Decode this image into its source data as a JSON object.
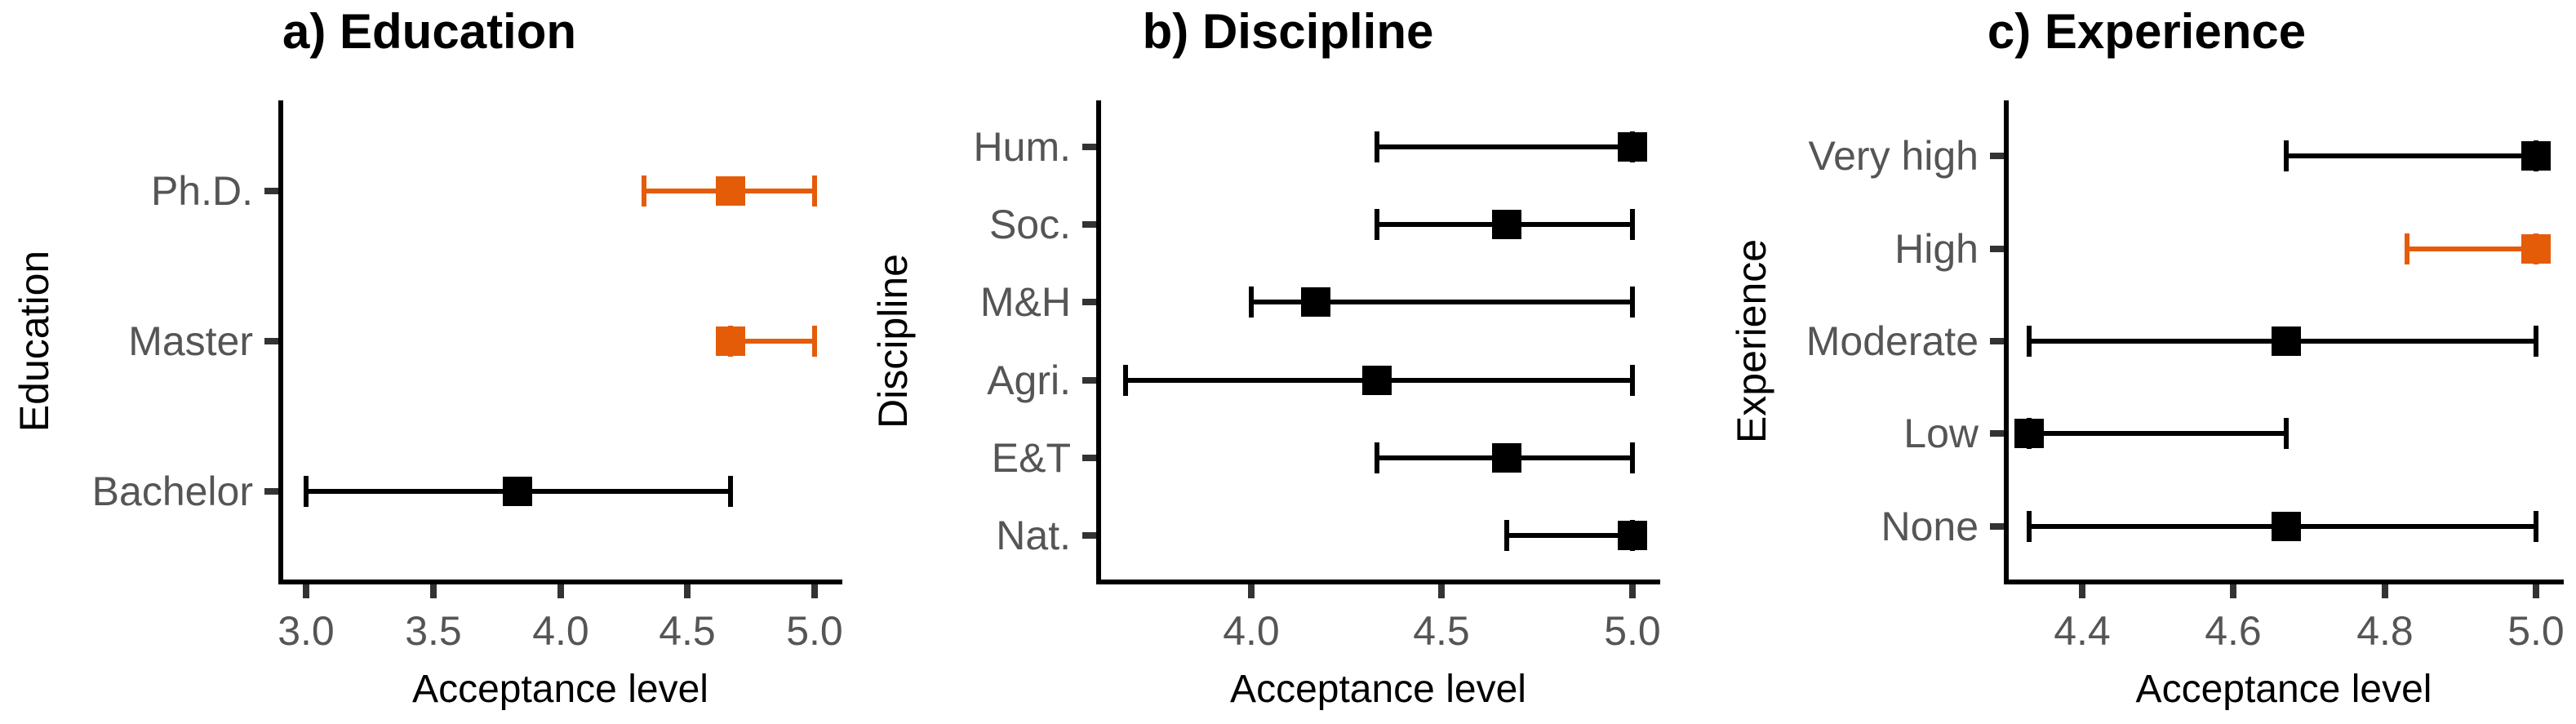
{
  "figure": {
    "kind": "three-panel dot-whisker plot of mean acceptance level with confidence intervals",
    "background": "#FFFFFF"
  },
  "palette": {
    "highlight": "#E45C08",
    "default": "#000000",
    "axis_line": "#000000",
    "tick_mark": "#333333",
    "tick_label_gray": "#555555",
    "title_color": "#000000"
  },
  "chart_data": [
    {
      "type": "scatter",
      "subtype": "dot-whisker-ci-horizontal",
      "panel": "a",
      "title": "a) Education",
      "xlabel": "Acceptance level",
      "ylabel": "Education",
      "categories": [
        "Ph.D.",
        "Master",
        "Bachelor"
      ],
      "points": [
        {
          "category": "Ph.D.",
          "mean": 4.67,
          "ci_low": 4.33,
          "ci_high": 5.0,
          "highlighted": true
        },
        {
          "category": "Master",
          "mean": 4.67,
          "ci_low": 4.67,
          "ci_high": 5.0,
          "highlighted": true
        },
        {
          "category": "Bachelor",
          "mean": 3.83,
          "ci_low": 3.0,
          "ci_high": 4.67,
          "highlighted": false
        }
      ],
      "xticks": [
        3.0,
        3.5,
        4.0,
        4.5,
        5.0
      ],
      "xtick_labels": [
        "3.0",
        "3.5",
        "4.0",
        "4.5",
        "5.0"
      ],
      "xlim": [
        2.9,
        5.1
      ],
      "grid": false,
      "legend": false
    },
    {
      "type": "scatter",
      "subtype": "dot-whisker-ci-horizontal",
      "panel": "b",
      "title": "b) Discipline",
      "xlabel": "Acceptance level",
      "ylabel": "Discipline",
      "categories": [
        "Hum.",
        "Soc.",
        "M&H",
        "Agri.",
        "E&T",
        "Nat."
      ],
      "points": [
        {
          "category": "Hum.",
          "mean": 5.0,
          "ci_low": 4.33,
          "ci_high": 5.0,
          "highlighted": false
        },
        {
          "category": "Soc.",
          "mean": 4.67,
          "ci_low": 4.33,
          "ci_high": 5.0,
          "highlighted": false
        },
        {
          "category": "M&H",
          "mean": 4.17,
          "ci_low": 4.0,
          "ci_high": 5.0,
          "highlighted": false
        },
        {
          "category": "Agri.",
          "mean": 4.33,
          "ci_low": 3.67,
          "ci_high": 5.0,
          "highlighted": false
        },
        {
          "category": "E&T",
          "mean": 4.67,
          "ci_low": 4.33,
          "ci_high": 5.0,
          "highlighted": false
        },
        {
          "category": "Nat.",
          "mean": 5.0,
          "ci_low": 4.67,
          "ci_high": 5.0,
          "highlighted": false
        }
      ],
      "xticks": [
        4.0,
        4.5,
        5.0
      ],
      "xtick_labels": [
        "4.0",
        "4.5",
        "5.0"
      ],
      "xlim": [
        3.6,
        5.0667
      ],
      "grid": false,
      "legend": false
    },
    {
      "type": "scatter",
      "subtype": "dot-whisker-ci-horizontal",
      "panel": "c",
      "title": "c) Experience",
      "xlabel": "Acceptance level",
      "ylabel": "Experience",
      "categories": [
        "Very high",
        "High",
        "Moderate",
        "Low",
        "None"
      ],
      "points": [
        {
          "category": "Very high",
          "mean": 5.0,
          "ci_low": 4.67,
          "ci_high": 5.0,
          "highlighted": false
        },
        {
          "category": "High",
          "mean": 5.0,
          "ci_low": 4.83,
          "ci_high": 5.0,
          "highlighted": true
        },
        {
          "category": "Moderate",
          "mean": 4.67,
          "ci_low": 4.33,
          "ci_high": 5.0,
          "highlighted": false
        },
        {
          "category": "Low",
          "mean": 4.33,
          "ci_low": 4.33,
          "ci_high": 4.67,
          "highlighted": false
        },
        {
          "category": "None",
          "mean": 4.67,
          "ci_low": 4.33,
          "ci_high": 5.0,
          "highlighted": false
        }
      ],
      "xticks": [
        4.4,
        4.6,
        4.8,
        5.0
      ],
      "xtick_labels": [
        "4.4",
        "4.6",
        "4.8",
        "5.0"
      ],
      "xlim": [
        4.3,
        5.0333
      ],
      "grid": false,
      "legend": false
    }
  ]
}
